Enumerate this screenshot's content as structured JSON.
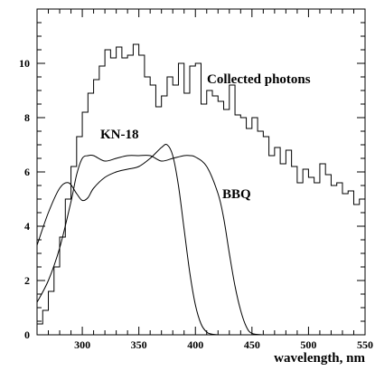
{
  "chart_data": {
    "type": "line",
    "title": "",
    "xlabel": "wavelength, nm",
    "ylabel": "",
    "xlim": [
      260,
      550
    ],
    "ylim": [
      0,
      12
    ],
    "grid": false,
    "legend": "none",
    "x_ticks": [
      300,
      350,
      400,
      450,
      500,
      550
    ],
    "y_ticks": [
      0,
      2,
      4,
      6,
      8,
      10
    ],
    "annotations": [
      {
        "text": "Collected photons",
        "x": 432,
        "y": 9.5
      },
      {
        "text": "KN-18",
        "x": 313,
        "y": 6.9
      },
      {
        "text": "BBQ",
        "x": 418,
        "y": 5.4
      }
    ],
    "series": [
      {
        "name": "Collected photons",
        "style": "step",
        "bin_width": 5,
        "x": [
          260,
          265,
          270,
          275,
          280,
          285,
          290,
          295,
          300,
          305,
          310,
          315,
          320,
          325,
          330,
          335,
          340,
          345,
          350,
          355,
          360,
          365,
          370,
          375,
          380,
          385,
          390,
          395,
          400,
          405,
          410,
          415,
          420,
          425,
          430,
          435,
          440,
          445,
          450,
          455,
          460,
          465,
          470,
          475,
          480,
          485,
          490,
          495,
          500,
          505,
          510,
          515,
          520,
          525,
          530,
          535,
          540,
          545
        ],
        "values": [
          0.4,
          0.9,
          1.6,
          2.5,
          3.6,
          5.0,
          6.2,
          7.3,
          8.2,
          8.9,
          9.4,
          9.9,
          10.5,
          10.2,
          10.6,
          10.2,
          10.3,
          10.7,
          10.3,
          9.5,
          9.2,
          8.4,
          8.8,
          9.5,
          9.2,
          10.0,
          8.9,
          9.9,
          10.0,
          8.5,
          9.0,
          8.8,
          8.6,
          8.3,
          9.2,
          8.1,
          8.0,
          7.6,
          8.0,
          7.5,
          7.3,
          6.6,
          6.9,
          6.3,
          6.8,
          6.2,
          5.6,
          6.1,
          5.8,
          5.6,
          6.3,
          5.9,
          5.5,
          5.6,
          5.2,
          5.3,
          4.8,
          5.0
        ]
      },
      {
        "name": "KN-18",
        "style": "smooth",
        "x": [
          260,
          270,
          280,
          288,
          295,
          300,
          305,
          310,
          320,
          330,
          340,
          350,
          360,
          370,
          375,
          380,
          385,
          390,
          395,
          400,
          405,
          410,
          415,
          420
        ],
        "values": [
          3.3,
          4.5,
          5.4,
          5.6,
          5.2,
          4.95,
          5.05,
          5.4,
          5.8,
          6.0,
          6.1,
          6.2,
          6.5,
          6.9,
          7.0,
          6.6,
          5.5,
          3.9,
          2.3,
          1.1,
          0.4,
          0.1,
          0.02,
          0.0
        ]
      },
      {
        "name": "BBQ",
        "style": "smooth",
        "x": [
          260,
          270,
          280,
          290,
          295,
          300,
          305,
          310,
          320,
          330,
          340,
          350,
          360,
          370,
          380,
          390,
          395,
          400,
          410,
          420,
          425,
          430,
          435,
          440,
          445,
          450,
          460
        ],
        "values": [
          1.2,
          2.0,
          3.2,
          4.9,
          5.9,
          6.5,
          6.6,
          6.6,
          6.4,
          6.5,
          6.6,
          6.6,
          6.6,
          6.4,
          6.5,
          6.6,
          6.6,
          6.55,
          6.2,
          5.2,
          4.3,
          3.0,
          1.8,
          0.9,
          0.3,
          0.05,
          0.0
        ]
      }
    ]
  }
}
